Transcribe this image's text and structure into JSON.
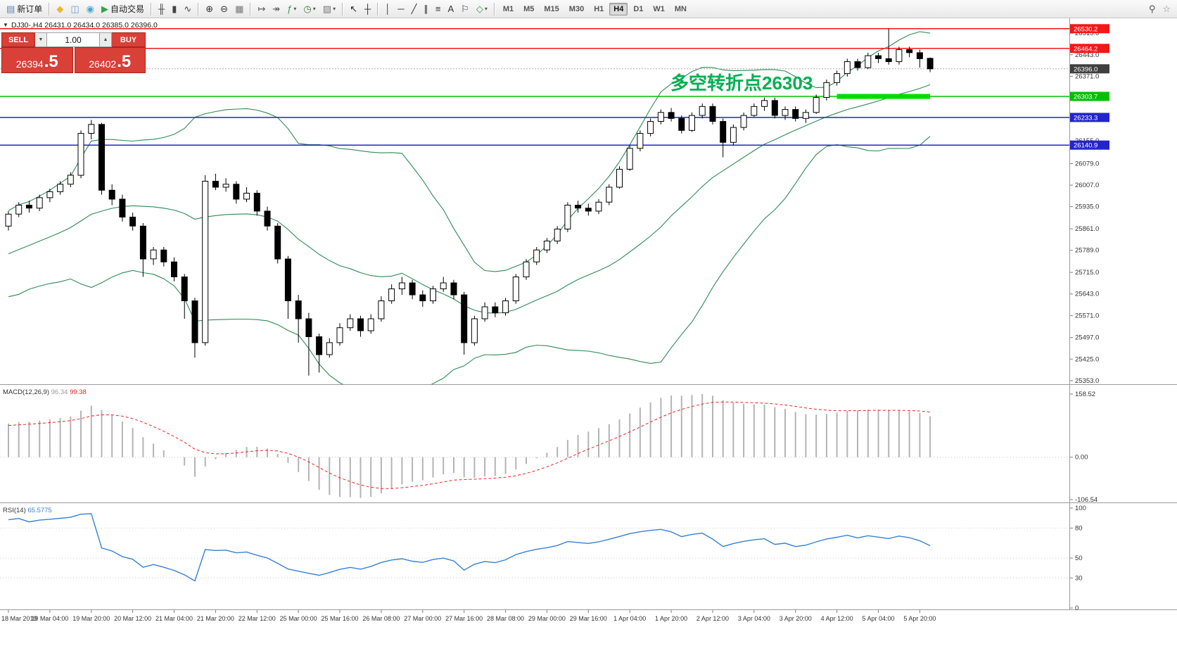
{
  "toolbar": {
    "items": [
      {
        "type": "button",
        "name": "new-order-button",
        "glyph": "▤",
        "glyph_color": "#5b86b8",
        "label": "新订单"
      },
      {
        "type": "sep"
      },
      {
        "type": "button",
        "name": "metaeditor-icon",
        "glyph": "◆",
        "glyph_color": "#eab531"
      },
      {
        "type": "button",
        "name": "terminal-icon",
        "glyph": "◫",
        "glyph_color": "#6a9fd8"
      },
      {
        "type": "button",
        "name": "strategy-tester-icon",
        "glyph": "◉",
        "glyph_color": "#49a7c9"
      },
      {
        "type": "button",
        "name": "autotrading-button",
        "glyph": "▶",
        "glyph_color": "#2ea44f",
        "label": "自动交易"
      },
      {
        "type": "sep"
      },
      {
        "type": "button",
        "name": "bar-chart-button",
        "glyph": "╫",
        "glyph_color": "#444444"
      },
      {
        "type": "button",
        "name": "candlestick-chart-button",
        "glyph": "▮",
        "glyph_color": "#444444"
      },
      {
        "type": "button",
        "name": "line-chart-button",
        "glyph": "∿",
        "glyph_color": "#444444"
      },
      {
        "type": "sep"
      },
      {
        "type": "button",
        "name": "zoom-in-button",
        "glyph": "⊕",
        "glyph_color": "#333333"
      },
      {
        "type": "button",
        "name": "zoom-out-button",
        "glyph": "⊖",
        "glyph_color": "#333333"
      },
      {
        "type": "button",
        "name": "tile-windows-button",
        "glyph": "▦",
        "glyph_color": "#777777"
      },
      {
        "type": "sep"
      },
      {
        "type": "button",
        "name": "chart-shift-button",
        "glyph": "↦",
        "glyph_color": "#555555"
      },
      {
        "type": "button",
        "name": "auto-scroll-button",
        "glyph": "↠",
        "glyph_color": "#555555"
      },
      {
        "type": "button",
        "name": "indicators-button",
        "glyph": "ƒ",
        "glyph_color": "#2e9e4f",
        "caret": true
      },
      {
        "type": "button",
        "name": "periods-button",
        "glyph": "◷",
        "glyph_color": "#3a7d3a",
        "caret": true
      },
      {
        "type": "button",
        "name": "templates-button",
        "glyph": "▨",
        "glyph_color": "#777777",
        "caret": true
      },
      {
        "type": "sep"
      },
      {
        "type": "button",
        "name": "cursor-button",
        "glyph": "↖",
        "glyph_color": "#222222"
      },
      {
        "type": "button",
        "name": "crosshair-button",
        "glyph": "┼",
        "glyph_color": "#222222"
      },
      {
        "type": "sep"
      },
      {
        "type": "button",
        "name": "vertical-line-button",
        "glyph": "│",
        "glyph_color": "#333333"
      },
      {
        "type": "button",
        "name": "horizontal-line-button",
        "glyph": "─",
        "glyph_color": "#333333"
      },
      {
        "type": "button",
        "name": "trendline-button",
        "glyph": "╱",
        "glyph_color": "#333333"
      },
      {
        "type": "button",
        "name": "equidistant-channel-button",
        "glyph": "∥",
        "glyph_color": "#333333"
      },
      {
        "type": "button",
        "name": "fibonacci-button",
        "glyph": "≡",
        "glyph_color": "#333333"
      },
      {
        "type": "button",
        "name": "text-button",
        "glyph": "A",
        "glyph_color": "#333333"
      },
      {
        "type": "button",
        "name": "text-label-button",
        "glyph": "⚐",
        "glyph_color": "#333333"
      },
      {
        "type": "button",
        "name": "arrows-button",
        "glyph": "◇",
        "glyph_color": "#2e9e4f",
        "caret": true
      },
      {
        "type": "sep"
      }
    ],
    "timeframes": [
      "M1",
      "M5",
      "M15",
      "M30",
      "H1",
      "H4",
      "D1",
      "W1",
      "MN"
    ],
    "active_timeframe": "H4",
    "right_items": [
      {
        "type": "button",
        "name": "search-button",
        "glyph": "⚲",
        "glyph_color": "#555555"
      },
      {
        "type": "button",
        "name": "favorites-button",
        "glyph": "☆",
        "glyph_color": "#888888"
      }
    ],
    "caret_glyph": "▾"
  },
  "chart_header": {
    "collapse_icon": "▼",
    "symbol_period": "DJ30-,H4",
    "ohlc_text": "26431.0 26434.0 26385.0 26396.0"
  },
  "trade_panel": {
    "sell_label": "SELL",
    "buy_label": "BUY",
    "lot_size": "1.00",
    "lot_dec_icon": "▼",
    "lot_inc_icon": "▲",
    "sell_price_main": "26394",
    "sell_price_pips": ".5",
    "buy_price_main": "26402",
    "buy_price_pips": ".5"
  },
  "annotation": {
    "text": "多空转折点26303",
    "color": "#00B050"
  },
  "highlight_segment": {
    "price": 26303.7,
    "from_index": 80,
    "to_index": 89,
    "color": "#00DC00",
    "thickness": 7
  },
  "levels": [
    {
      "price": 26530.2,
      "label": "26530.2",
      "color": "#f21818"
    },
    {
      "price": 26464.2,
      "label": "26464.2",
      "color": "#f21818"
    },
    {
      "price": 26303.7,
      "label": "26303.7",
      "color": "#00c000"
    },
    {
      "price": 26233.3,
      "label": "26233.3",
      "color": "#2424cc"
    },
    {
      "price": 26140.9,
      "label": "26140.9",
      "color": "#2424cc"
    }
  ],
  "current_price": {
    "value": 26396.0,
    "label": "26396.0",
    "marker_color": "#3f3f3f"
  },
  "price_axis": {
    "labels": [
      "26515.0",
      "26443.0",
      "26371.0",
      "26299.0",
      "26227.0",
      "26155.0",
      "26079.0",
      "26007.0",
      "25935.0",
      "25861.0",
      "25789.0",
      "25715.0",
      "25643.0",
      "25571.0",
      "25497.0",
      "25425.0",
      "25353.0"
    ]
  },
  "time_axis": {
    "step": 4,
    "labels": [
      "18 Mar 2019",
      "19 Mar 04:00",
      "19 Mar 20:00",
      "20 Mar 12:00",
      "21 Mar 04:00",
      "21 Mar 20:00",
      "22 Mar 12:00",
      "25 Mar 00:00",
      "25 Mar 16:00",
      "26 Mar 08:00",
      "27 Mar 00:00",
      "27 Mar 16:00",
      "28 Mar 08:00",
      "29 Mar 00:00",
      "29 Mar 16:00",
      "1 Apr 04:00",
      "1 Apr 20:00",
      "2 Apr 12:00",
      "3 Apr 04:00",
      "3 Apr 20:00",
      "4 Apr 12:00",
      "5 Apr 04:00",
      "5 Apr 20:00"
    ]
  },
  "chart_data": {
    "type": "candlestick",
    "symbol": "DJ30-",
    "period": "H4",
    "ylim": [
      25341,
      26565
    ],
    "history_closes": [
      25480,
      25500,
      25520,
      25510,
      25540,
      25560,
      25580,
      25570,
      25600,
      25620,
      25640,
      25660,
      25650,
      25680,
      25700,
      25720,
      25710,
      25740,
      25760,
      25780,
      25770,
      25790,
      25810,
      25800,
      25820,
      25840,
      25830,
      25850,
      25860,
      25870
    ],
    "candles": [
      [
        25870,
        25920,
        25855,
        25910
      ],
      [
        25910,
        25950,
        25900,
        25940
      ],
      [
        25940,
        25955,
        25915,
        25930
      ],
      [
        25930,
        25975,
        25920,
        25965
      ],
      [
        25965,
        25995,
        25950,
        25985
      ],
      [
        25985,
        26020,
        25975,
        26010
      ],
      [
        26010,
        26050,
        26000,
        26040
      ],
      [
        26040,
        26190,
        26030,
        26180
      ],
      [
        26180,
        26225,
        26160,
        26210
      ],
      [
        26210,
        26215,
        25975,
        25990
      ],
      [
        25990,
        26010,
        25940,
        25960
      ],
      [
        25960,
        25975,
        25885,
        25900
      ],
      [
        25900,
        25915,
        25855,
        25870
      ],
      [
        25870,
        25880,
        25700,
        25760
      ],
      [
        25760,
        25800,
        25740,
        25790
      ],
      [
        25790,
        25800,
        25735,
        25750
      ],
      [
        25750,
        25765,
        25685,
        25700
      ],
      [
        25700,
        25710,
        25560,
        25620
      ],
      [
        25620,
        25630,
        25430,
        25480
      ],
      [
        25480,
        26040,
        25470,
        26020
      ],
      [
        26020,
        26045,
        25990,
        26000
      ],
      [
        26000,
        26030,
        25985,
        26010
      ],
      [
        26010,
        26020,
        25945,
        25960
      ],
      [
        25960,
        26000,
        25950,
        25980
      ],
      [
        25980,
        25990,
        25905,
        25920
      ],
      [
        25920,
        25935,
        25855,
        25870
      ],
      [
        25870,
        25880,
        25745,
        25760
      ],
      [
        25760,
        25770,
        25560,
        25620
      ],
      [
        25620,
        25640,
        25480,
        25560
      ],
      [
        25560,
        25580,
        25370,
        25500
      ],
      [
        25500,
        25510,
        25380,
        25440
      ],
      [
        25440,
        25495,
        25430,
        25480
      ],
      [
        25480,
        25545,
        25470,
        25530
      ],
      [
        25530,
        25575,
        25520,
        25560
      ],
      [
        25560,
        25570,
        25500,
        25520
      ],
      [
        25520,
        25575,
        25510,
        25560
      ],
      [
        25560,
        25635,
        25550,
        25620
      ],
      [
        25620,
        25675,
        25610,
        25660
      ],
      [
        25660,
        25700,
        25640,
        25680
      ],
      [
        25680,
        25690,
        25625,
        25640
      ],
      [
        25640,
        25655,
        25600,
        25620
      ],
      [
        25620,
        25670,
        25610,
        25660
      ],
      [
        25660,
        25700,
        25650,
        25680
      ],
      [
        25680,
        25690,
        25625,
        25640
      ],
      [
        25640,
        25650,
        25440,
        25480
      ],
      [
        25480,
        25570,
        25470,
        25560
      ],
      [
        25560,
        25615,
        25550,
        25600
      ],
      [
        25600,
        25615,
        25565,
        25580
      ],
      [
        25580,
        25630,
        25570,
        25620
      ],
      [
        25620,
        25710,
        25610,
        25700
      ],
      [
        25700,
        25760,
        25690,
        25750
      ],
      [
        25750,
        25800,
        25740,
        25790
      ],
      [
        25790,
        25830,
        25780,
        25820
      ],
      [
        25820,
        25870,
        25810,
        25860
      ],
      [
        25860,
        25950,
        25850,
        25940
      ],
      [
        25940,
        25955,
        25915,
        25930
      ],
      [
        25930,
        25945,
        25905,
        25920
      ],
      [
        25920,
        25960,
        25910,
        25950
      ],
      [
        25950,
        26010,
        25940,
        26000
      ],
      [
        26000,
        26070,
        25995,
        26060
      ],
      [
        26060,
        26140,
        26055,
        26130
      ],
      [
        26130,
        26190,
        26120,
        26180
      ],
      [
        26180,
        26230,
        26170,
        26220
      ],
      [
        26220,
        26260,
        26210,
        26250
      ],
      [
        26250,
        26265,
        26220,
        26230
      ],
      [
        26230,
        26240,
        26180,
        26190
      ],
      [
        26190,
        26250,
        26185,
        26240
      ],
      [
        26240,
        26280,
        26230,
        26270
      ],
      [
        26270,
        26280,
        26210,
        26220
      ],
      [
        26220,
        26230,
        26100,
        26150
      ],
      [
        26150,
        26210,
        26140,
        26200
      ],
      [
        26200,
        26250,
        26190,
        26240
      ],
      [
        26240,
        26280,
        26235,
        26270
      ],
      [
        26270,
        26300,
        26255,
        26290
      ],
      [
        26290,
        26300,
        26230,
        26240
      ],
      [
        26240,
        26270,
        26225,
        26260
      ],
      [
        26260,
        26270,
        26220,
        26230
      ],
      [
        26230,
        26260,
        26215,
        26250
      ],
      [
        26250,
        26310,
        26245,
        26300
      ],
      [
        26300,
        26360,
        26290,
        26350
      ],
      [
        26350,
        26390,
        26340,
        26380
      ],
      [
        26380,
        26430,
        26370,
        26420
      ],
      [
        26420,
        26430,
        26390,
        26400
      ],
      [
        26400,
        26450,
        26395,
        26440
      ],
      [
        26440,
        26450,
        26415,
        26430
      ],
      [
        26430,
        26530,
        26410,
        26420
      ],
      [
        26420,
        26470,
        26410,
        26460
      ],
      [
        26460,
        26470,
        26435,
        26450
      ],
      [
        26450,
        26460,
        26400,
        26430
      ],
      [
        26431,
        26434,
        26385,
        26396
      ]
    ],
    "indicators": {
      "bollinger": {
        "period": 20,
        "deviation": 2,
        "color": "#2E8B57"
      },
      "macd": {
        "label": "MACD(12,26,9)",
        "main_value": "96.34",
        "signal_value": "99.38",
        "axis_labels": [
          "158.52",
          "0.00",
          "-106.54"
        ],
        "axis_values": [
          158.52,
          0,
          -106.54
        ],
        "histogram_color": "#b4b4b4",
        "signal_color": "#ee2222"
      },
      "rsi": {
        "label": "RSI(14)",
        "value": "65.5775",
        "color": "#3781d6",
        "axis_labels": [
          "100",
          "80",
          "50",
          "30",
          "0"
        ],
        "axis_values": [
          100,
          80,
          50,
          30,
          0
        ],
        "level_lines": [
          80,
          50,
          30
        ]
      }
    }
  }
}
